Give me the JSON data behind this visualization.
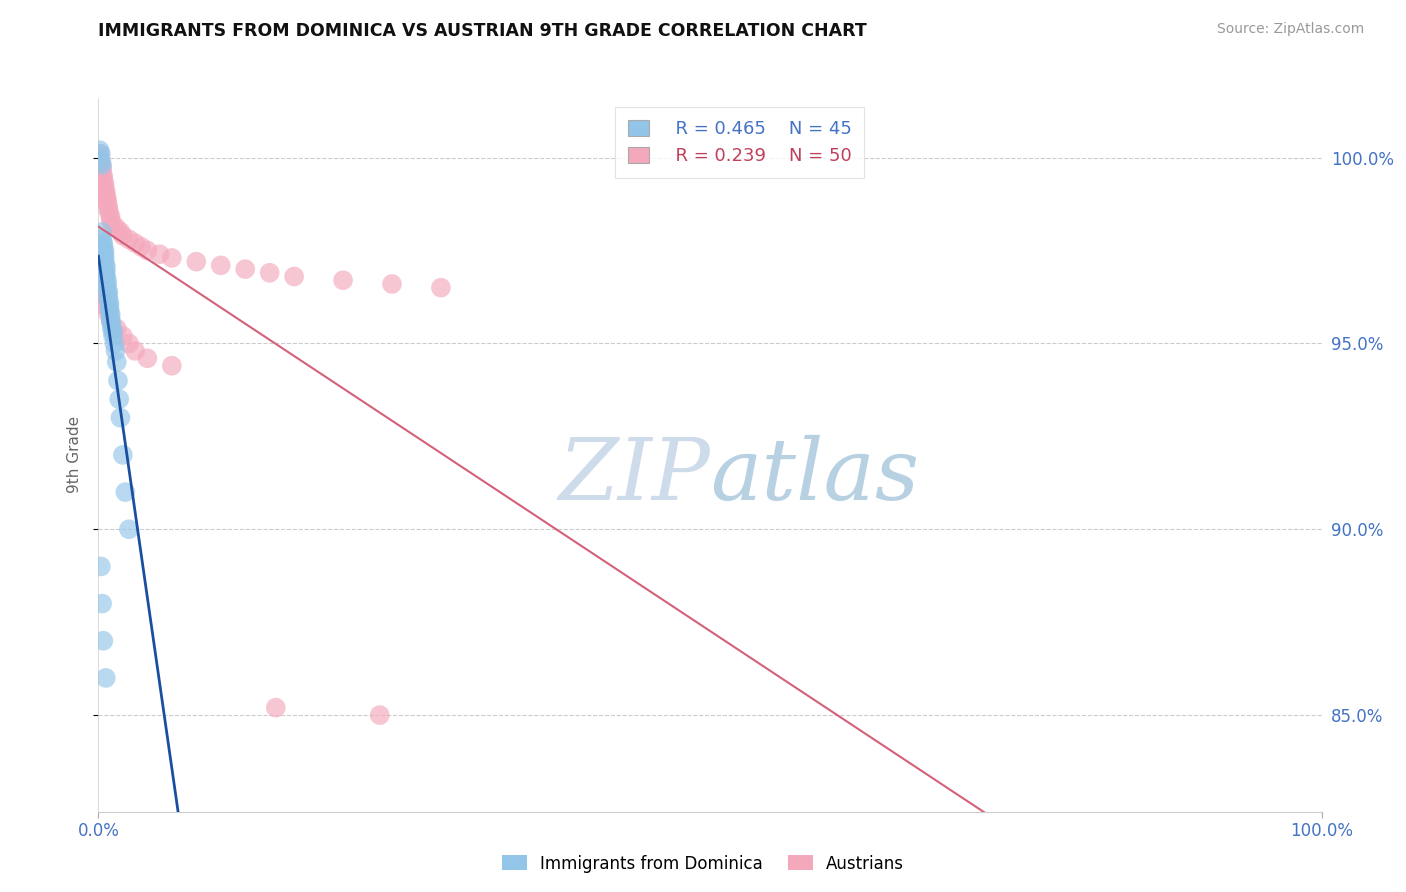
{
  "title": "IMMIGRANTS FROM DOMINICA VS AUSTRIAN 9TH GRADE CORRELATION CHART",
  "source": "Source: ZipAtlas.com",
  "ylabel": "9th Grade",
  "ytick_labels": [
    "85.0%",
    "90.0%",
    "95.0%",
    "100.0%"
  ],
  "ytick_values": [
    0.85,
    0.9,
    0.95,
    1.0
  ],
  "xlim": [
    0.0,
    1.0
  ],
  "ylim": [
    0.824,
    1.016
  ],
  "blue_label": "Immigrants from Dominica",
  "pink_label": "Austrians",
  "blue_R": "R = 0.465",
  "blue_N": "N = 45",
  "pink_R": "R = 0.239",
  "pink_N": "N = 50",
  "blue_color": "#92c5e8",
  "pink_color": "#f4a8bc",
  "blue_line_color": "#1a4fa0",
  "pink_line_color": "#d4607a",
  "text_blue": "#4472c4",
  "text_pink": "#c0405a",
  "watermark_color": "#ddeef8",
  "grid_color": "#cccccc",
  "background": "#ffffff",
  "blue_scatter_x": [
    0.001,
    0.002,
    0.002,
    0.003,
    0.003,
    0.003,
    0.004,
    0.004,
    0.005,
    0.005,
    0.005,
    0.005,
    0.006,
    0.006,
    0.006,
    0.006,
    0.007,
    0.007,
    0.007,
    0.008,
    0.008,
    0.008,
    0.009,
    0.009,
    0.009,
    0.01,
    0.01,
    0.01,
    0.011,
    0.011,
    0.012,
    0.012,
    0.013,
    0.014,
    0.015,
    0.016,
    0.017,
    0.018,
    0.02,
    0.022,
    0.025,
    0.002,
    0.003,
    0.004,
    0.006
  ],
  "blue_scatter_y": [
    1.002,
    1.001,
    0.999,
    0.998,
    0.98,
    0.978,
    0.977,
    0.976,
    0.975,
    0.974,
    0.973,
    0.972,
    0.971,
    0.97,
    0.969,
    0.968,
    0.967,
    0.966,
    0.965,
    0.964,
    0.963,
    0.962,
    0.961,
    0.96,
    0.959,
    0.958,
    0.957,
    0.956,
    0.955,
    0.954,
    0.953,
    0.952,
    0.95,
    0.948,
    0.945,
    0.94,
    0.935,
    0.93,
    0.92,
    0.91,
    0.9,
    0.89,
    0.88,
    0.87,
    0.86
  ],
  "pink_scatter_x": [
    0.001,
    0.001,
    0.002,
    0.002,
    0.003,
    0.003,
    0.004,
    0.004,
    0.005,
    0.005,
    0.006,
    0.006,
    0.007,
    0.007,
    0.008,
    0.008,
    0.009,
    0.01,
    0.01,
    0.012,
    0.015,
    0.018,
    0.02,
    0.025,
    0.03,
    0.035,
    0.04,
    0.05,
    0.06,
    0.08,
    0.1,
    0.12,
    0.14,
    0.16,
    0.2,
    0.24,
    0.28,
    0.003,
    0.004,
    0.006,
    0.008,
    0.01,
    0.015,
    0.02,
    0.025,
    0.03,
    0.04,
    0.06,
    0.145,
    0.23
  ],
  "pink_scatter_y": [
    1.001,
    1.0,
    0.999,
    0.998,
    0.997,
    0.996,
    0.995,
    0.994,
    0.993,
    0.992,
    0.991,
    0.99,
    0.989,
    0.988,
    0.987,
    0.986,
    0.985,
    0.984,
    0.983,
    0.982,
    0.981,
    0.98,
    0.979,
    0.978,
    0.977,
    0.976,
    0.975,
    0.974,
    0.973,
    0.972,
    0.971,
    0.97,
    0.969,
    0.968,
    0.967,
    0.966,
    0.965,
    0.963,
    0.962,
    0.96,
    0.958,
    0.956,
    0.954,
    0.952,
    0.95,
    0.948,
    0.946,
    0.944,
    0.852,
    0.85
  ]
}
